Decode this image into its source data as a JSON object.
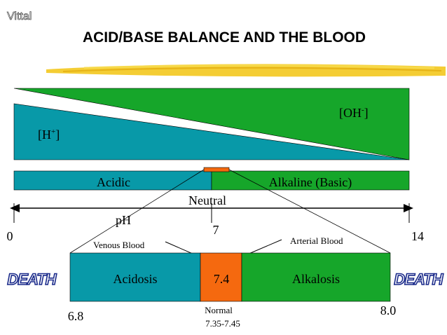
{
  "slide": {
    "author": "Vittal",
    "title": "ACID/BASE BALANCE AND THE BLOOD"
  },
  "gradient": {
    "hydrogen_label": "[H",
    "hydrogen_sup": "+",
    "hydroxide_label": "[OH",
    "hydroxide_sup": "-"
  },
  "scale_bar": {
    "acidic_label": "Acidic",
    "alkaline_label": "Alkaline (Basic)",
    "neutral_label": "Neutral",
    "ph_label": "pH",
    "min_label": "0",
    "mid_label": "7",
    "max_label": "14"
  },
  "blood": {
    "venous_label": "Venous Blood",
    "arterial_label": "Arterial Blood",
    "acidosis_label": "Acidosis",
    "value_label": "7.4",
    "alkalosis_label": "Alkalosis",
    "low_label": "6.8",
    "high_label": "8.0",
    "normal_label": "Normal",
    "normal_range": "7.35-7.45",
    "death_left": "DEATH",
    "death_right": "DEATH"
  },
  "colors": {
    "teal": "#0899a8",
    "green": "#16a62a",
    "orange": "#f5690f",
    "highlighter": "#f3c81e"
  }
}
